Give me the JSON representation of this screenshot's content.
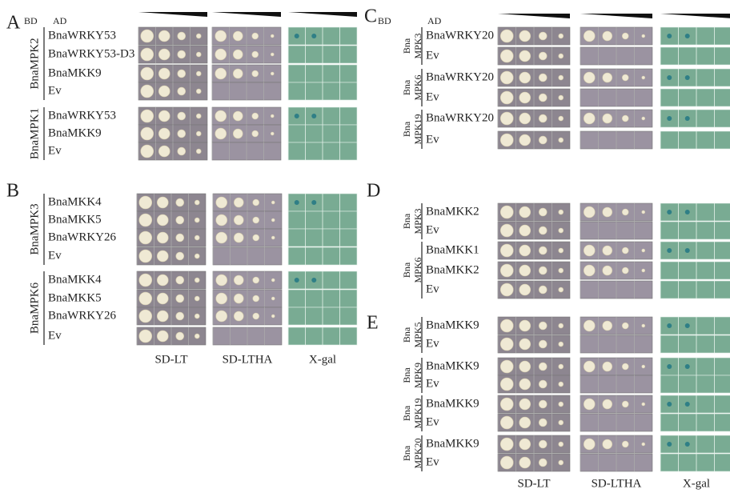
{
  "panels": [
    {
      "label": "A",
      "bd_header": "BD",
      "ad_header": "AD",
      "groups": [
        {
          "bd": [
            "BnaMPK2"
          ],
          "rows": [
            "BnaWRKY53",
            "BnaWRKY53-D3",
            "BnaMKK9",
            "Ev"
          ]
        },
        {
          "bd": [
            "BnaMPK1"
          ],
          "rows": [
            "BnaWRKY53",
            "BnaMKK9",
            "Ev"
          ]
        }
      ]
    },
    {
      "label": "B",
      "groups": [
        {
          "bd": [
            "BnaMPK3"
          ],
          "rows": [
            "BnaMKK4",
            "BnaMKK5",
            "BnaWRKY26",
            "Ev"
          ]
        },
        {
          "bd": [
            "BnaMPK6"
          ],
          "rows": [
            "BnaMKK4",
            "BnaMKK5",
            "BnaWRKY26",
            "Ev"
          ]
        }
      ],
      "columns": [
        "SD-LT",
        "SD-LTHA",
        "X-gal"
      ]
    },
    {
      "label": "C",
      "bd_header": "BD",
      "ad_header": "AD",
      "groups": [
        {
          "bd": [
            "Bna",
            "MPK3"
          ],
          "rows": [
            "BnaWRKY20",
            "Ev"
          ]
        },
        {
          "bd": [
            "Bna",
            "MPK6"
          ],
          "rows": [
            "BnaWRKY20",
            "Ev"
          ]
        },
        {
          "bd": [
            "Bna",
            "MPK19"
          ],
          "rows": [
            "BnaWRKY20",
            "Ev"
          ]
        }
      ]
    },
    {
      "label": "D",
      "groups": [
        {
          "bd": [
            "Bna",
            "MPK3"
          ],
          "rows": [
            "BnaMKK2",
            "Ev"
          ]
        },
        {
          "bd": [
            "Bna",
            "MPK6"
          ],
          "rows": [
            "BnaMKK1",
            "BnaMKK2",
            "Ev"
          ]
        }
      ]
    },
    {
      "label": "E",
      "groups": [
        {
          "bd": [
            "Bna",
            "MPK5"
          ],
          "rows": [
            "BnaMKK9",
            "Ev"
          ]
        },
        {
          "bd": [
            "Bna",
            "MPK9"
          ],
          "rows": [
            "BnaMKK9",
            "Ev"
          ]
        },
        {
          "bd": [
            "Bna",
            "MPK19"
          ],
          "rows": [
            "BnaMKK9",
            "Ev"
          ]
        },
        {
          "bd": [
            "Bna",
            "MPK20"
          ],
          "rows": [
            "BnaMKK9",
            "Ev"
          ]
        }
      ],
      "columns": [
        "SD-LT",
        "SD-LTHA",
        "X-gal"
      ]
    }
  ]
}
